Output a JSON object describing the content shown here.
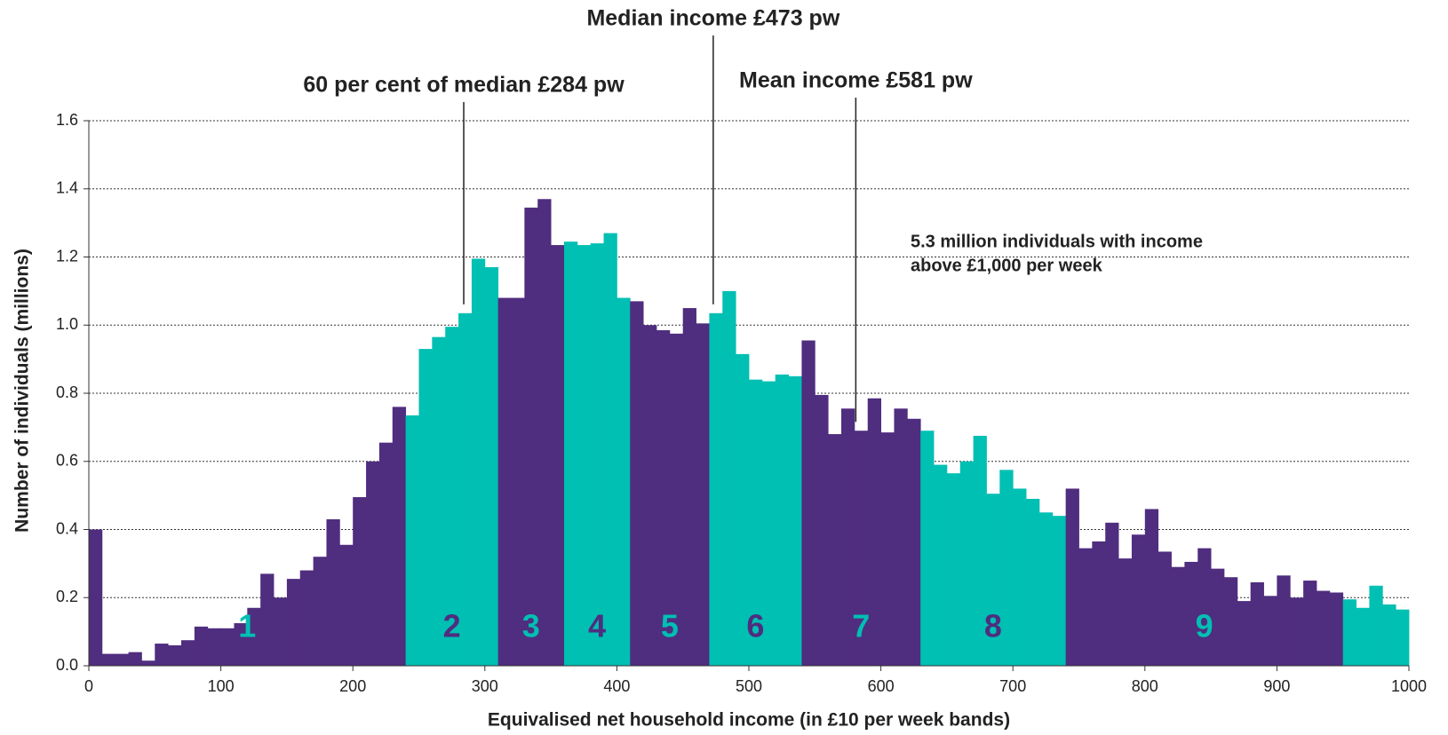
{
  "chart_data": {
    "type": "histogram",
    "xlabel": "Equivalised net household income (in £10 per week bands)",
    "ylabel": "Number of individuals (millions)",
    "bins": [
      0,
      10,
      20,
      30,
      40,
      50,
      60,
      70,
      80,
      90,
      100,
      110,
      120,
      130,
      140,
      150,
      160,
      170,
      180,
      190,
      200,
      210,
      220,
      230,
      240,
      250,
      260,
      270,
      280,
      290,
      300,
      310,
      320,
      330,
      340,
      350,
      360,
      370,
      380,
      390,
      400,
      410,
      420,
      430,
      440,
      450,
      460,
      470,
      480,
      490,
      500,
      510,
      520,
      530,
      540,
      550,
      560,
      570,
      580,
      590,
      600,
      610,
      620,
      630,
      640,
      650,
      660,
      670,
      680,
      690,
      700,
      710,
      720,
      730,
      740,
      750,
      760,
      770,
      780,
      790,
      800,
      810,
      820,
      830,
      840,
      850,
      860,
      870,
      880,
      890,
      900,
      910,
      920,
      930,
      940,
      950,
      960,
      970,
      980,
      990,
      1000
    ],
    "values": [
      0.4,
      0.035,
      0.035,
      0.04,
      0.015,
      0.065,
      0.06,
      0.075,
      0.115,
      0.11,
      0.11,
      0.125,
      0.17,
      0.27,
      0.2,
      0.255,
      0.28,
      0.32,
      0.43,
      0.355,
      0.495,
      0.6,
      0.655,
      0.76,
      0.735,
      0.93,
      0.965,
      0.995,
      1.035,
      1.195,
      1.17,
      1.08,
      1.08,
      1.345,
      1.37,
      1.235,
      1.245,
      1.235,
      1.24,
      1.27,
      1.08,
      1.07,
      1.0,
      0.985,
      0.975,
      1.05,
      1.005,
      1.035,
      1.1,
      0.915,
      0.84,
      0.835,
      0.855,
      0.85,
      0.955,
      0.795,
      0.68,
      0.755,
      0.69,
      0.785,
      0.685,
      0.755,
      0.725,
      0.69,
      0.59,
      0.565,
      0.6,
      0.675,
      0.505,
      0.575,
      0.52,
      0.49,
      0.45,
      0.44,
      0.52,
      0.345,
      0.365,
      0.42,
      0.315,
      0.385,
      0.46,
      0.335,
      0.29,
      0.305,
      0.345,
      0.285,
      0.26,
      0.19,
      0.245,
      0.205,
      0.265,
      0.2,
      0.25,
      0.22,
      0.215,
      0.195,
      0.17,
      0.235,
      0.18,
      0.165
    ],
    "bands": [
      {
        "label": "1",
        "start": 0,
        "end": 240,
        "color": "#4f2d7f",
        "label_color": "#00bfb3"
      },
      {
        "label": "2",
        "start": 240,
        "end": 310,
        "color": "#00bfb3",
        "label_color": "#4f2d7f"
      },
      {
        "label": "3",
        "start": 310,
        "end": 360,
        "color": "#4f2d7f",
        "label_color": "#00bfb3"
      },
      {
        "label": "4",
        "start": 360,
        "end": 410,
        "color": "#00bfb3",
        "label_color": "#4f2d7f"
      },
      {
        "label": "5",
        "start": 410,
        "end": 470,
        "color": "#4f2d7f",
        "label_color": "#00bfb3"
      },
      {
        "label": "6",
        "start": 470,
        "end": 540,
        "color": "#00bfb3",
        "label_color": "#4f2d7f"
      },
      {
        "label": "7",
        "start": 540,
        "end": 630,
        "color": "#4f2d7f",
        "label_color": "#00bfb3"
      },
      {
        "label": "8",
        "start": 630,
        "end": 740,
        "color": "#00bfb3",
        "label_color": "#4f2d7f"
      },
      {
        "label": "9",
        "start": 740,
        "end": 950,
        "color": "#4f2d7f",
        "label_color": "#00bfb3"
      },
      {
        "label": null,
        "start": 950,
        "end": 1000,
        "color": "#00bfb3",
        "label_color": "#4f2d7f"
      }
    ],
    "annotations": [
      {
        "text": "60 per cent of median £284 pw",
        "x": 284
      },
      {
        "text": "Median income £473 pw",
        "x": 473
      },
      {
        "text": "Mean income £581 pw",
        "x": 581
      }
    ],
    "note": [
      "5.3 million individuals with income",
      "above £1,000 per week"
    ],
    "xlim": [
      0,
      1000
    ],
    "xticks": [
      0,
      100,
      200,
      300,
      400,
      500,
      600,
      700,
      800,
      900,
      1000
    ],
    "ylim": [
      0,
      1.6
    ],
    "yticks": [
      {
        "value": 0,
        "label": "0.0"
      },
      {
        "value": 0.2,
        "label": "0.2"
      },
      {
        "value": 0.4,
        "label": "0.4"
      },
      {
        "value": 0.6,
        "label": "0.6"
      },
      {
        "value": 0.8,
        "label": "0.8"
      },
      {
        "value": 1.0,
        "label": "1.0"
      },
      {
        "value": 1.2,
        "label": "1.2"
      },
      {
        "value": 1.4,
        "label": "1.4"
      },
      {
        "value": 1.6,
        "label": "1.6"
      }
    ],
    "grid": true
  }
}
